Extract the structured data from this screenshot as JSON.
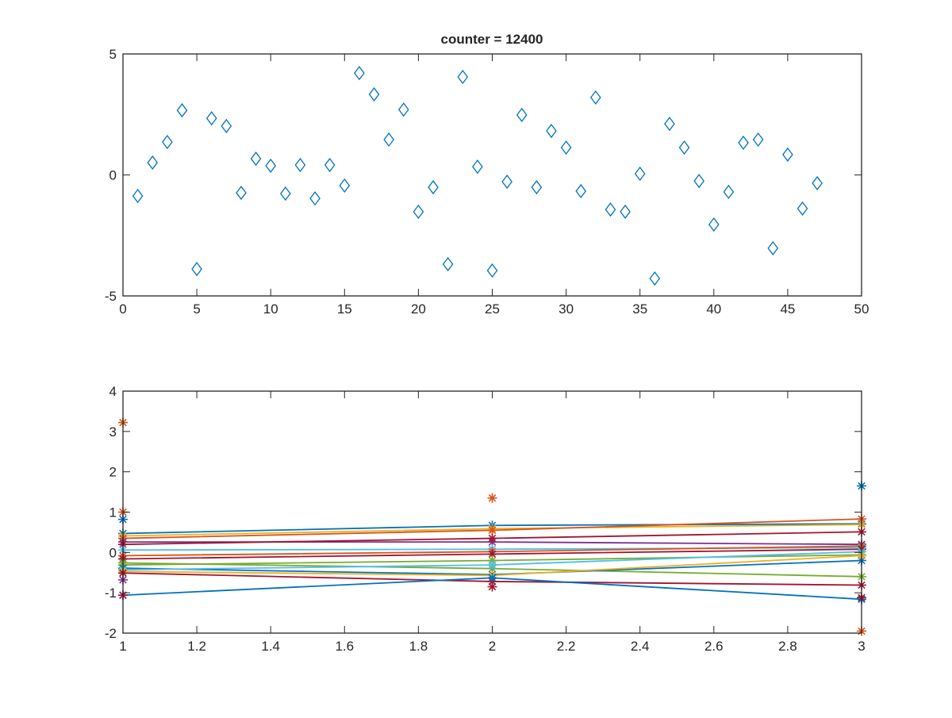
{
  "chart_data": [
    {
      "type": "scatter",
      "title": "counter = 12400",
      "xlabel": "",
      "ylabel": "",
      "xlim": [
        0,
        50
      ],
      "ylim": [
        -5,
        5
      ],
      "xticks": [
        0,
        5,
        10,
        15,
        20,
        25,
        30,
        35,
        40,
        45,
        50
      ],
      "yticks": [
        -5,
        0,
        5
      ],
      "marker": "diamond",
      "color": "#0072BD",
      "grid": false,
      "x": [
        1,
        2,
        3,
        4,
        5,
        6,
        7,
        8,
        9,
        10,
        11,
        12,
        13,
        14,
        15,
        16,
        17,
        18,
        19,
        20,
        21,
        22,
        23,
        24,
        25,
        26,
        27,
        28,
        29,
        30,
        31,
        32,
        33,
        34,
        35,
        36,
        37,
        38,
        39,
        40,
        41,
        42,
        43,
        44,
        45,
        46,
        47
      ],
      "y": [
        -0.87,
        0.51,
        1.36,
        2.67,
        -3.89,
        2.34,
        2.02,
        -0.74,
        0.67,
        0.38,
        -0.77,
        0.41,
        -0.97,
        0.41,
        -0.44,
        4.21,
        3.33,
        1.46,
        2.7,
        -1.52,
        -0.51,
        -3.69,
        4.05,
        0.34,
        -3.95,
        -0.28,
        2.48,
        -0.51,
        1.82,
        1.13,
        -0.67,
        3.2,
        -1.43,
        -1.52,
        0.05,
        -4.28,
        2.11,
        1.13,
        -0.25,
        -2.05,
        -0.7,
        1.33,
        1.46,
        -3.03,
        0.84,
        -1.39,
        -0.34
      ]
    },
    {
      "type": "line",
      "title": "",
      "xlabel": "",
      "ylabel": "",
      "xlim": [
        1,
        3
      ],
      "ylim": [
        -2,
        4
      ],
      "xticks": [
        1,
        1.2,
        1.4,
        1.6,
        1.8,
        2,
        2.2,
        2.4,
        2.6,
        2.8,
        3
      ],
      "yticks": [
        -2,
        -1,
        0,
        1,
        2,
        3,
        4
      ],
      "grid": false,
      "x": [
        1,
        2,
        3
      ],
      "series": [
        {
          "color": "#0072BD",
          "values": [
            0.47,
            0.67,
            0.71
          ]
        },
        {
          "color": "#EDB120",
          "values": [
            0.41,
            0.59,
            0.69
          ]
        },
        {
          "color": "#D95319",
          "values": [
            0.35,
            0.55,
            0.83
          ]
        },
        {
          "color": "#7E2F8E",
          "values": [
            0.26,
            0.26,
            0.2
          ]
        },
        {
          "color": "#A2142F",
          "values": [
            0.2,
            0.35,
            0.51
          ]
        },
        {
          "color": "#4DBEEE",
          "values": [
            0.06,
            0.08,
            0.12
          ]
        },
        {
          "color": "#D95319",
          "values": [
            -0.08,
            0.02,
            0.16
          ]
        },
        {
          "color": "#A2142F",
          "values": [
            -0.16,
            -0.04,
            0.08
          ]
        },
        {
          "color": "#77AC30",
          "values": [
            -0.26,
            -0.4,
            -0.6
          ]
        },
        {
          "color": "#77AC30",
          "values": [
            -0.31,
            -0.2,
            -0.06
          ]
        },
        {
          "color": "#0072BD",
          "values": [
            -0.39,
            -0.55,
            -0.2
          ]
        },
        {
          "color": "#4DBEEE",
          "values": [
            -0.43,
            -0.31,
            0.02
          ]
        },
        {
          "color": "#EDB120",
          "values": [
            -0.47,
            -0.57,
            -0.08
          ]
        },
        {
          "color": "#A2142F",
          "values": [
            -0.51,
            -0.72,
            -0.81
          ]
        },
        {
          "color": "#0072BD",
          "values": [
            -1.06,
            -0.63,
            -1.16
          ]
        }
      ],
      "extra_points": [
        {
          "color": "#D95319",
          "x": 1,
          "y": 3.22
        },
        {
          "color": "#D95319",
          "x": 1,
          "y": 1.0
        },
        {
          "color": "#0072BD",
          "x": 1,
          "y": 0.82
        },
        {
          "color": "#7E2F8E",
          "x": 1,
          "y": -0.68
        },
        {
          "color": "#A2142F",
          "x": 1,
          "y": -1.06
        },
        {
          "color": "#D95319",
          "x": 2,
          "y": 1.35
        },
        {
          "color": "#A2142F",
          "x": 2,
          "y": -0.85
        },
        {
          "color": "#0072BD",
          "x": 3,
          "y": 1.65
        },
        {
          "color": "#D95319",
          "x": 3,
          "y": -1.95
        },
        {
          "color": "#A2142F",
          "x": 3,
          "y": -1.12
        }
      ]
    }
  ]
}
